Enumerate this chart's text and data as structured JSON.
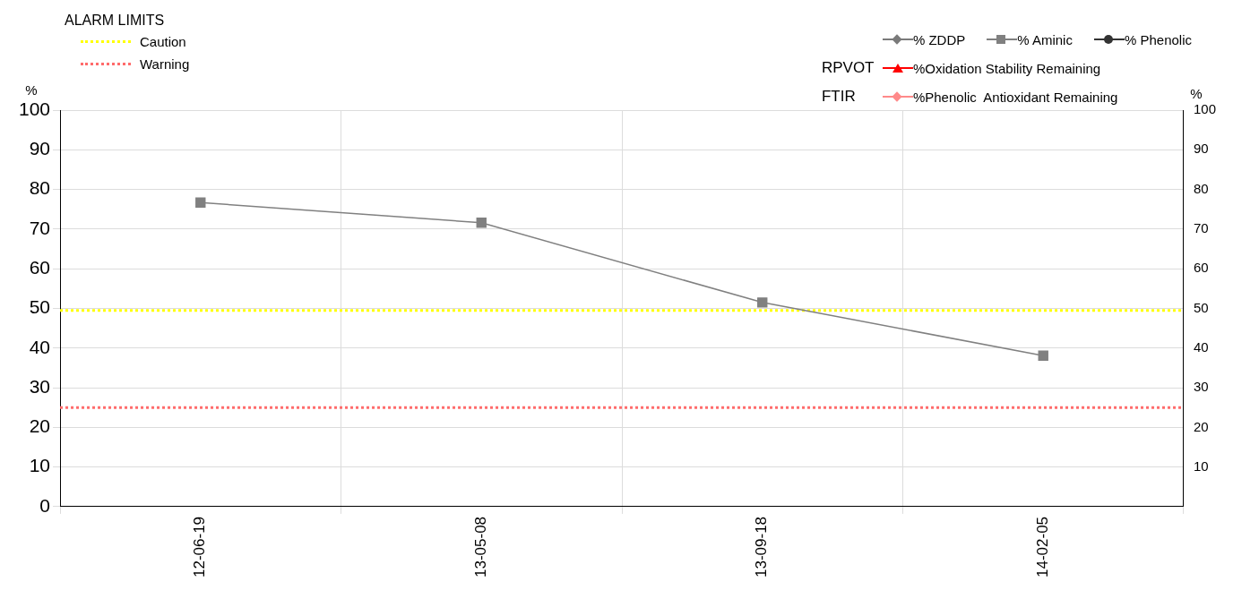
{
  "chart_data": {
    "type": "line",
    "categories": [
      "12-06-19",
      "13-05-08",
      "13-09-18",
      "14-02-05"
    ],
    "series": [
      {
        "name": "% ZDDP",
        "color": "#7a7a7a",
        "marker": "diamond",
        "values": [
          null,
          null,
          null,
          null
        ]
      },
      {
        "name": "% Aminic",
        "color": "#808080",
        "marker": "square",
        "values": [
          76.7,
          71.6,
          51.5,
          38.1
        ]
      },
      {
        "name": "% Phenolic",
        "color": "#333333",
        "marker": "circle",
        "values": [
          null,
          null,
          null,
          null
        ]
      },
      {
        "name": "%Oxidation Stability Remaining",
        "color": "#ff0000",
        "marker": "triangle",
        "values": [
          null,
          null,
          null,
          null
        ]
      },
      {
        "name": "%Phenolic  Antioxidant Remaining",
        "color": "#ff8a8a",
        "marker": "diamond",
        "values": [
          null,
          null,
          null,
          null
        ]
      }
    ],
    "ylabel": "%",
    "y2label": "%",
    "ylim": [
      0,
      100
    ],
    "yticks": [
      0,
      10,
      20,
      30,
      40,
      50,
      60,
      70,
      80,
      90,
      100
    ],
    "y2lim": [
      0,
      100
    ],
    "y2ticks": [
      10,
      20,
      30,
      40,
      50,
      60,
      70,
      80,
      90,
      100
    ],
    "legend_title": "ALARM LIMITS",
    "ref_lines": [
      {
        "axis": "y",
        "value": 49.5,
        "label": "Caution",
        "color": "#ffff00",
        "line_style": "dotted"
      },
      {
        "axis": "y",
        "value": 25,
        "label": "Warning",
        "color": "#ff6b6b",
        "line_style": "dotted"
      }
    ],
    "annotations": [
      "RPVOT",
      "FTIR"
    ],
    "grid": true,
    "legend": "top right",
    "line_style": "solid"
  }
}
